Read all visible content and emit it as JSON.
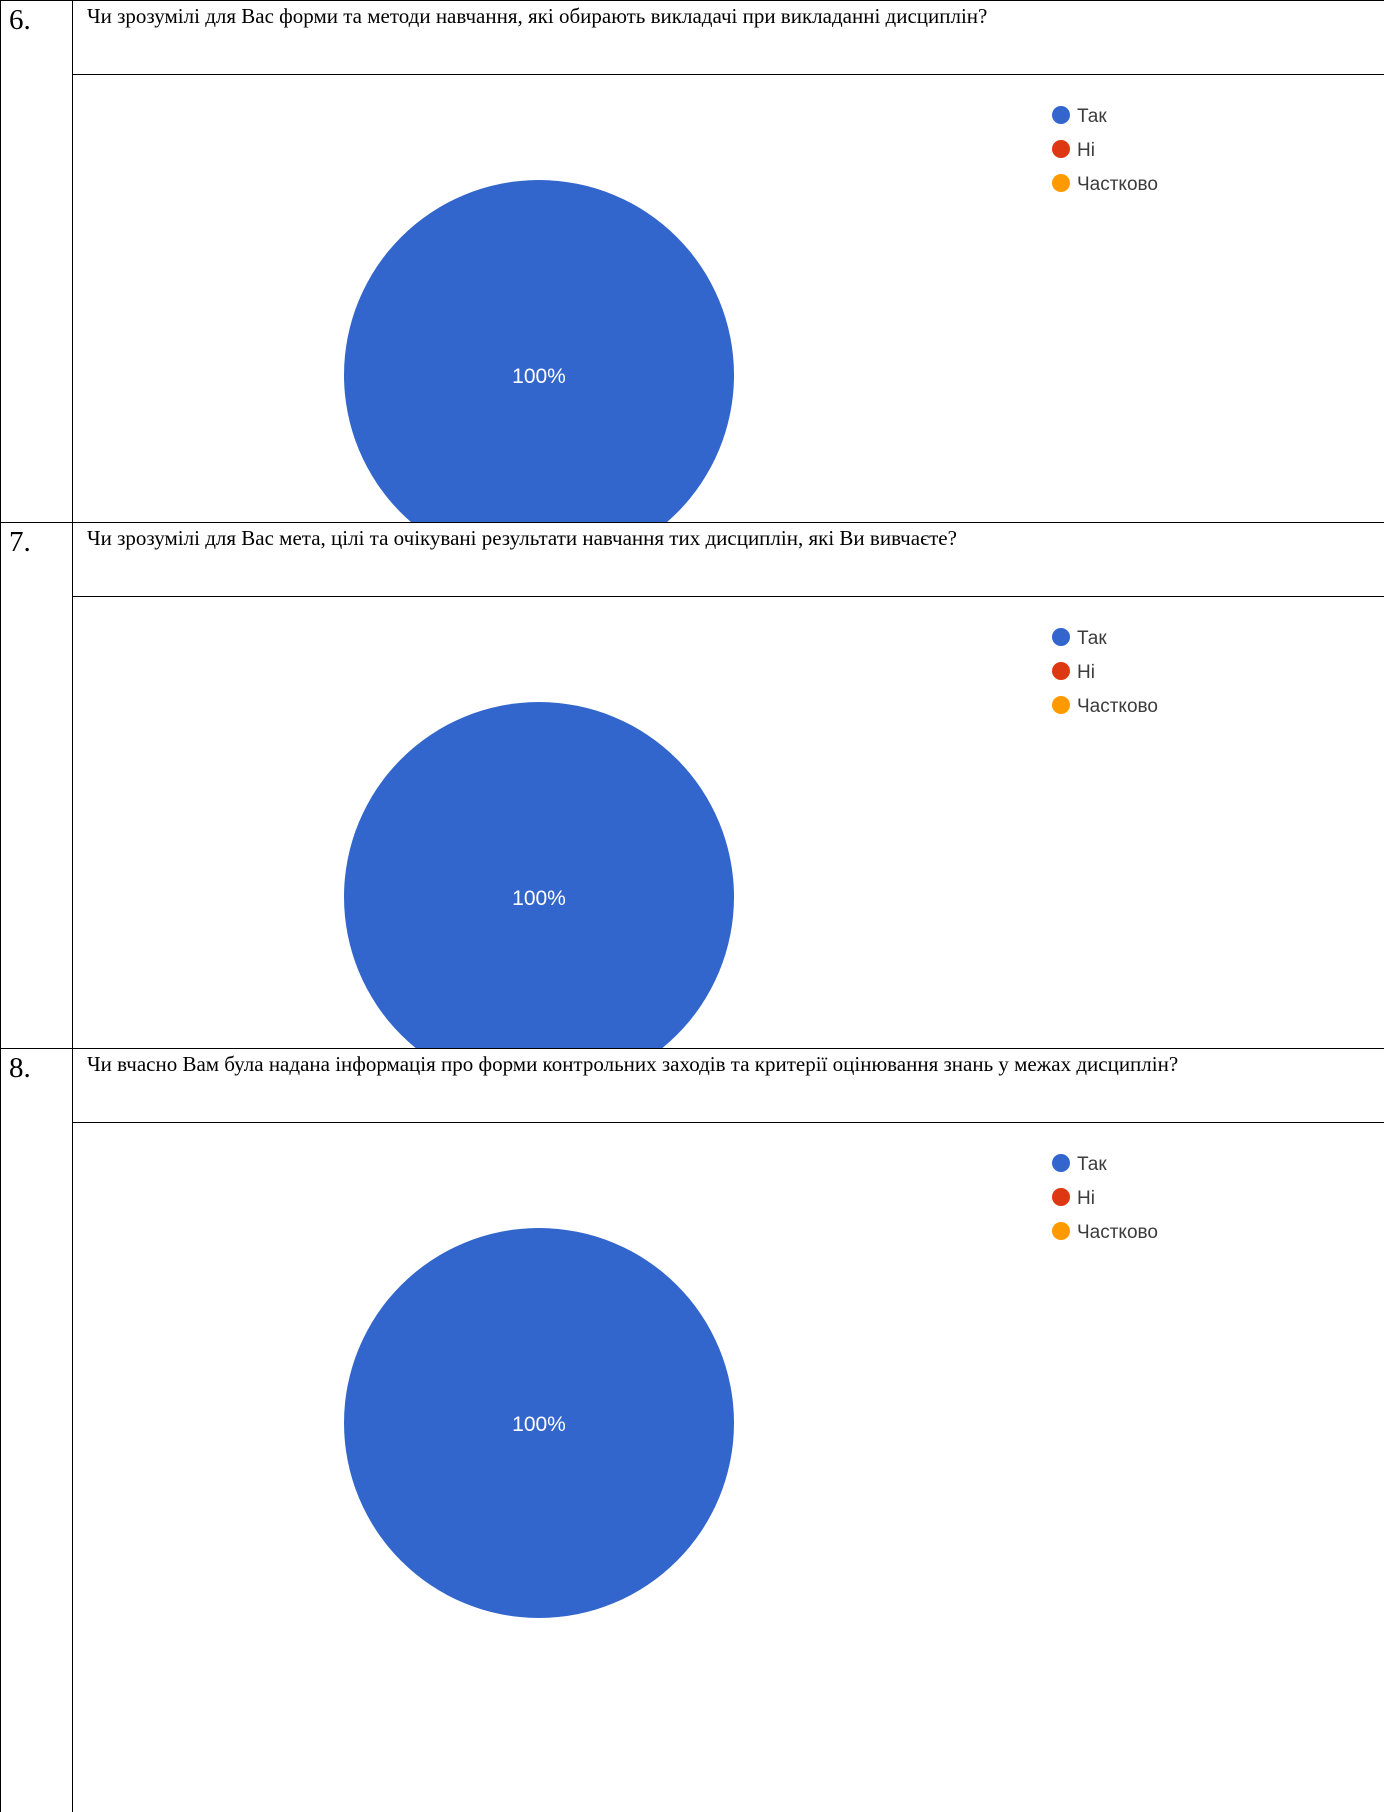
{
  "colors": {
    "tak": "#3366CC",
    "ni": "#DC3912",
    "chastkovo": "#FF9900",
    "border": "#000000"
  },
  "rows": [
    {
      "number": "6.",
      "question": "Чи зрозумілі для Вас форми та методи навчання, які обирають викладачі при викладанні дисциплін?",
      "chart_data": {
        "type": "pie",
        "categories": [
          "Так",
          "Ні",
          "Частково"
        ],
        "values": [
          100,
          0,
          0
        ],
        "data_labels": [
          "100%"
        ],
        "legend_position": "top-right"
      }
    },
    {
      "number": "7.",
      "question": "Чи зрозумілі для Вас мета, цілі та очікувані результати навчання тих дисциплін, які Ви вивчаєте?",
      "chart_data": {
        "type": "pie",
        "categories": [
          "Так",
          "Ні",
          "Частково"
        ],
        "values": [
          100,
          0,
          0
        ],
        "data_labels": [
          "100%"
        ],
        "legend_position": "top-right"
      }
    },
    {
      "number": "8.",
      "question": "Чи вчасно Вам була надана інформація про форми контрольних заходів та критерії оцінювання знань у межах дисциплін?",
      "chart_data": {
        "type": "pie",
        "categories": [
          "Так",
          "Ні",
          "Частково"
        ],
        "values": [
          100,
          0,
          0
        ],
        "data_labels": [
          "100%"
        ],
        "legend_position": "top-right"
      }
    }
  ]
}
